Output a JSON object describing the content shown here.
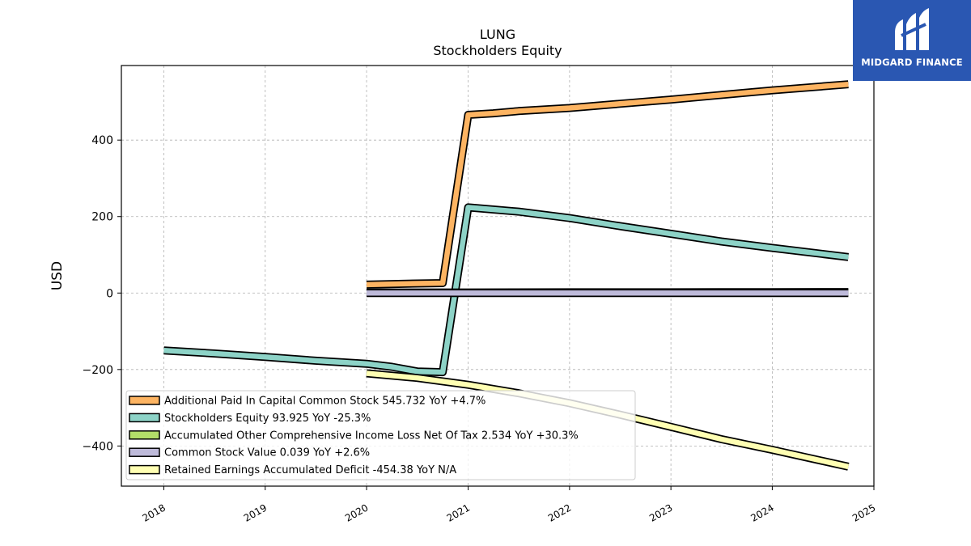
{
  "brand": {
    "name": "MIDGARD FINANCE",
    "bg_color": "#2a57b2"
  },
  "chart_data": {
    "type": "line",
    "title": "LUNG",
    "subtitle": "Stockholders  Equity",
    "xlabel": "",
    "ylabel": "USD",
    "xlim": [
      "2017-08-01",
      "2025-01-01"
    ],
    "ylim": [
      -505,
      595
    ],
    "x_ticks": [
      "2018",
      "2019",
      "2020",
      "2021",
      "2022",
      "2023",
      "2024",
      "2025"
    ],
    "y_ticks": [
      400,
      200,
      0,
      -200,
      -400
    ],
    "y_tick_labels": [
      "400",
      "200",
      "0",
      "−200",
      "−400"
    ],
    "grid": true,
    "legend_position": "lower-left",
    "series": [
      {
        "name": "Additional Paid In Capital Common Stock",
        "legend_label": "Additional Paid In Capital Common Stock  545.732 YoY +4.7%",
        "color": "#fdb462",
        "points": [
          [
            "2020-01-01",
            22
          ],
          [
            "2020-07-01",
            25
          ],
          [
            "2020-10-01",
            26
          ],
          [
            "2021-01-01",
            466
          ],
          [
            "2021-04-01",
            470
          ],
          [
            "2021-07-01",
            476
          ],
          [
            "2022-01-01",
            484
          ],
          [
            "2022-07-01",
            495
          ],
          [
            "2023-01-01",
            506
          ],
          [
            "2023-07-01",
            518
          ],
          [
            "2024-01-01",
            530
          ],
          [
            "2024-10-01",
            546
          ]
        ]
      },
      {
        "name": "Stockholders Equity",
        "legend_label": "Stockholders Equity  93.925 YoY -25.3%",
        "color": "#8dd3c7",
        "points": [
          [
            "2018-01-01",
            -150
          ],
          [
            "2018-07-01",
            -158
          ],
          [
            "2019-01-01",
            -167
          ],
          [
            "2019-07-01",
            -177
          ],
          [
            "2020-01-01",
            -185
          ],
          [
            "2020-04-01",
            -193
          ],
          [
            "2020-07-01",
            -205
          ],
          [
            "2020-10-01",
            -207
          ],
          [
            "2021-01-01",
            224
          ],
          [
            "2021-07-01",
            213
          ],
          [
            "2022-01-01",
            196
          ],
          [
            "2022-07-01",
            175
          ],
          [
            "2023-01-01",
            155
          ],
          [
            "2023-07-01",
            135
          ],
          [
            "2024-01-01",
            118
          ],
          [
            "2024-10-01",
            94
          ]
        ]
      },
      {
        "name": "Accumulated Other Comprehensive Income Loss Net Of Tax",
        "legend_label": "Accumulated Other Comprehensive Income Loss Net Of Tax  2.534 YoY +30.3%",
        "color": "#b3de69",
        "points": [
          [
            "2020-01-01",
            1.2
          ],
          [
            "2021-01-01",
            1.5
          ],
          [
            "2022-01-01",
            1.8
          ],
          [
            "2023-01-01",
            1.9
          ],
          [
            "2024-01-01",
            2.2
          ],
          [
            "2024-10-01",
            2.534
          ]
        ]
      },
      {
        "name": "Common Stock Value",
        "legend_label": "Common Stock Value  0.039 YoY +2.6%",
        "color": "#bebada",
        "points": [
          [
            "2020-01-01",
            0.03
          ],
          [
            "2021-01-01",
            0.035
          ],
          [
            "2022-01-01",
            0.036
          ],
          [
            "2023-01-01",
            0.037
          ],
          [
            "2024-01-01",
            0.038
          ],
          [
            "2024-10-01",
            0.039
          ]
        ]
      },
      {
        "name": "Retained Earnings Accumulated Deficit",
        "legend_label": "Retained Earnings Accumulated Deficit  -454.38 YoY N/A",
        "color": "#ffffb3",
        "points": [
          [
            "2020-01-01",
            -210
          ],
          [
            "2020-07-01",
            -222
          ],
          [
            "2021-01-01",
            -240
          ],
          [
            "2021-07-01",
            -262
          ],
          [
            "2022-01-01",
            -288
          ],
          [
            "2022-07-01",
            -318
          ],
          [
            "2023-01-01",
            -350
          ],
          [
            "2023-07-01",
            -382
          ],
          [
            "2024-01-01",
            -410
          ],
          [
            "2024-10-01",
            -454
          ]
        ]
      }
    ]
  }
}
